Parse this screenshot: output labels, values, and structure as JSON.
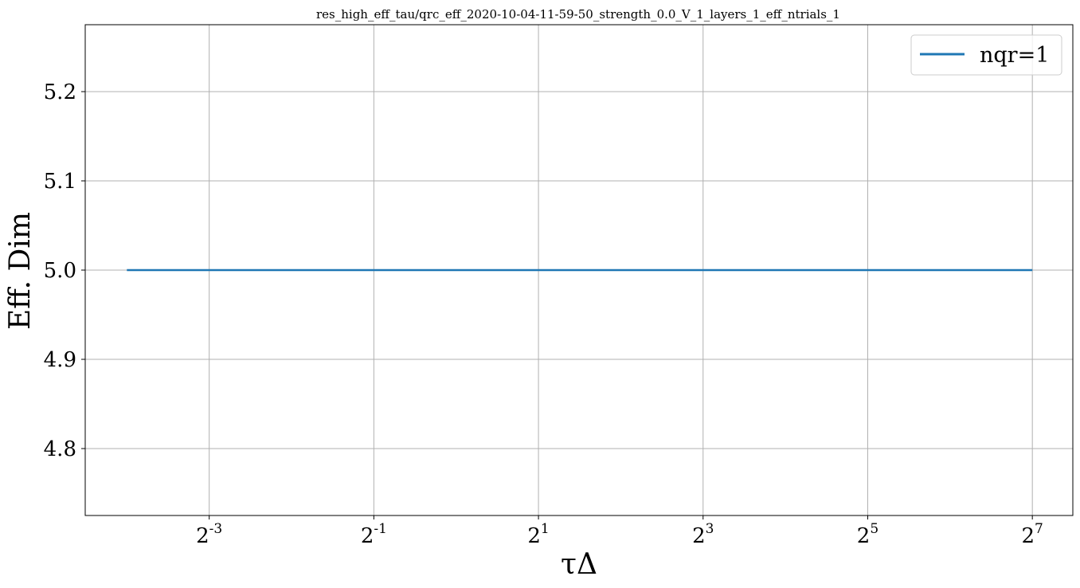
{
  "chart_data": {
    "type": "line",
    "title": "res_high_eff_tau/qrc_eff_2020-10-04-11-59-50_strength_0.0_V_1_layers_1_eff_ntrials_1",
    "xlabel": "τΔ",
    "ylabel": "Eff. Dim",
    "xscale": "log2",
    "x_ticks": [
      {
        "base": "2",
        "exp": "-3",
        "value": 0.125
      },
      {
        "base": "2",
        "exp": "-1",
        "value": 0.5
      },
      {
        "base": "2",
        "exp": "1",
        "value": 2
      },
      {
        "base": "2",
        "exp": "3",
        "value": 8
      },
      {
        "base": "2",
        "exp": "5",
        "value": 32
      },
      {
        "base": "2",
        "exp": "7",
        "value": 128
      }
    ],
    "y_ticks": [
      "4.8",
      "4.9",
      "5.0",
      "5.1",
      "5.2"
    ],
    "xlim": [
      0.044,
      180
    ],
    "ylim": [
      4.725,
      5.275
    ],
    "grid": true,
    "legend_position": "top-right",
    "series": [
      {
        "name": "nqr=1",
        "color": "#1f77b4",
        "x": [
          0.0625,
          0.125,
          0.25,
          0.5,
          1,
          2,
          4,
          8,
          16,
          32,
          64,
          128
        ],
        "y": [
          5.0,
          5.0,
          5.0,
          5.0,
          5.0,
          5.0,
          5.0,
          5.0,
          5.0,
          5.0,
          5.0,
          5.0
        ]
      }
    ]
  }
}
